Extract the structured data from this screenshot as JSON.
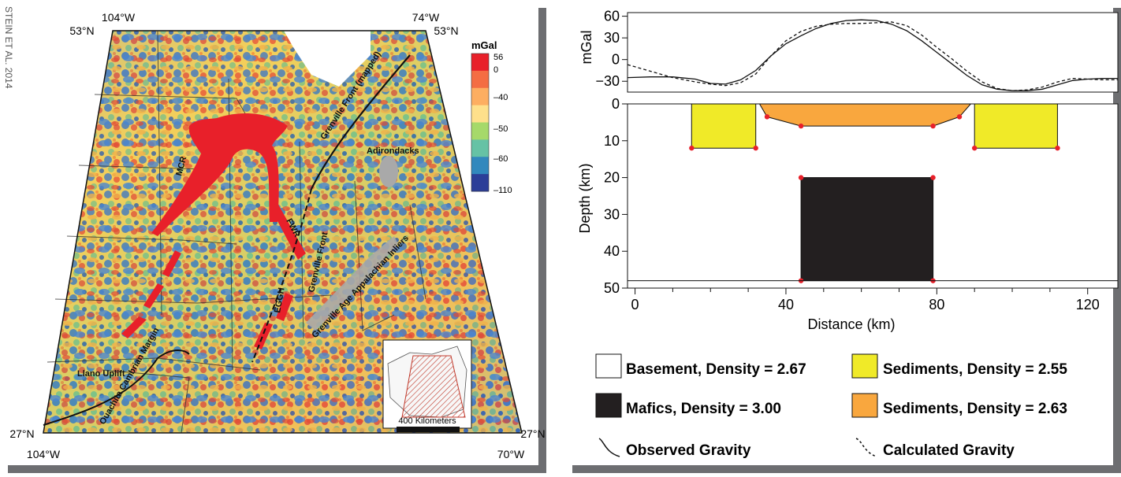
{
  "author_credit": "STEIN ET AL. 2014",
  "map": {
    "corner_labels": {
      "top_left_lon": "104°W",
      "top_right_lon": "74°W",
      "top_left_lat": "53°N",
      "top_right_lat": "53°N",
      "bottom_left_lat": "27°N",
      "bottom_right_lat": "27°N",
      "bottom_left_lon": "104°W",
      "bottom_right_lon": "70°W"
    },
    "colorbar": {
      "title": "mGal",
      "ticks": [
        "56",
        "0",
        "–40",
        "–50",
        "–60",
        "–110"
      ],
      "colors": [
        "#e8202a",
        "#f46d43",
        "#fdae61",
        "#fee08b",
        "#a6d96a",
        "#66c2a5",
        "#3288bd",
        "#2c3e98"
      ]
    },
    "feature_labels": {
      "mcr": "MCR",
      "fwr": "FWR",
      "egh": "EGGH",
      "grenville_front_mapped": "Grenville Front (mapped)",
      "grenville_front": "Grenville Front",
      "adirondacks": "Adirondacks",
      "grenville_inliers": "Grenville Age Appalachian Inliers",
      "llano": "Llano Uplift",
      "ouachita": "Ouachita Cambrian Margin"
    },
    "scale_label": "400 Kilometers",
    "colors": {
      "rift": "#e8202a",
      "inlier": "#a9a9a9"
    }
  },
  "chart_data": {
    "type": "line",
    "gravity_panel": {
      "ylabel": "mGal",
      "yticks": [
        60,
        30,
        0,
        -30
      ],
      "ylim": [
        -45,
        65
      ],
      "series": [
        {
          "name": "Observed Gravity",
          "style": "solid",
          "x": [
            -2,
            4,
            10,
            16,
            20,
            24,
            28,
            32,
            36,
            40,
            44,
            48,
            52,
            56,
            60,
            64,
            68,
            72,
            76,
            80,
            84,
            88,
            92,
            96,
            100,
            104,
            108,
            112,
            116,
            120,
            124,
            128
          ],
          "y": [
            -25,
            -24,
            -24,
            -27,
            -33,
            -34,
            -28,
            -15,
            5,
            22,
            33,
            43,
            50,
            54,
            55,
            54,
            49,
            40,
            26,
            10,
            -6,
            -22,
            -35,
            -41,
            -43,
            -43,
            -41,
            -35,
            -29,
            -27,
            -26,
            -26
          ]
        },
        {
          "name": "Calculated Gravity",
          "style": "dashed",
          "x": [
            -2,
            4,
            10,
            16,
            20,
            24,
            28,
            32,
            36,
            40,
            44,
            48,
            52,
            56,
            60,
            64,
            68,
            72,
            76,
            80,
            84,
            88,
            92,
            96,
            100,
            104,
            108,
            112,
            116,
            120,
            124,
            128
          ],
          "y": [
            -7,
            -16,
            -25,
            -31,
            -34,
            -36,
            -32,
            -20,
            5,
            26,
            39,
            46,
            49,
            50,
            50,
            51,
            52,
            47,
            34,
            17,
            1,
            -16,
            -31,
            -40,
            -43,
            -42,
            -38,
            -31,
            -26,
            -27,
            -28,
            -28
          ]
        }
      ]
    },
    "model_panel": {
      "xlabel": "Distance (km)",
      "ylabel": "Depth (km)",
      "xticks": [
        0,
        40,
        80,
        120
      ],
      "yticks": [
        0,
        10,
        20,
        30,
        40,
        50
      ],
      "xlim": [
        -2,
        128
      ],
      "ylim": [
        50,
        0
      ],
      "bodies": [
        {
          "label": "sediments-2.55-left",
          "color": "#f0ea28",
          "polygon": [
            [
              15,
              0
            ],
            [
              32,
              0
            ],
            [
              32,
              12
            ],
            [
              15,
              12
            ]
          ]
        },
        {
          "label": "sediments-2.55-right",
          "color": "#f0ea28",
          "polygon": [
            [
              90,
              0
            ],
            [
              112,
              0
            ],
            [
              112,
              12
            ],
            [
              90,
              12
            ]
          ]
        },
        {
          "label": "sediments-2.63",
          "color": "#f9a73e",
          "polygon": [
            [
              33,
              0
            ],
            [
              89,
              0
            ],
            [
              86,
              3.5
            ],
            [
              79,
              6
            ],
            [
              44,
              6
            ],
            [
              35,
              3.5
            ]
          ]
        },
        {
          "label": "mafics-3.00",
          "color": "#231f20",
          "polygon": [
            [
              44,
              20
            ],
            [
              79,
              20
            ],
            [
              79,
              48
            ],
            [
              44,
              48
            ]
          ]
        }
      ],
      "base_line_depth": 48
    },
    "legend": [
      {
        "swatch": "#ffffff",
        "text": "Basement, Density = 2.67"
      },
      {
        "swatch": "#f0ea28",
        "text": "Sediments, Density = 2.55"
      },
      {
        "swatch": "#231f20",
        "text": "Mafics, Density = 3.00"
      },
      {
        "swatch": "#f9a73e",
        "text": "Sediments, Density = 2.63"
      },
      {
        "line": "solid",
        "text": "Observed Gravity"
      },
      {
        "line": "dashed",
        "text": "Calculated Gravity"
      }
    ]
  }
}
